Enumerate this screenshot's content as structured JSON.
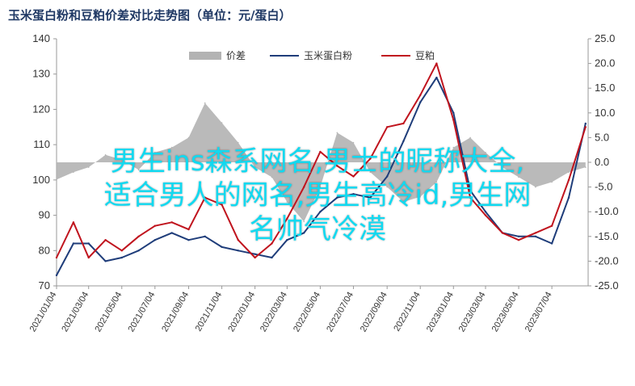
{
  "title": "玉米蛋白粉和豆粕价差对比走势图（单位：元/蛋白）",
  "overlay": {
    "line1": "男生ins森系网名,男士的昵称大全,",
    "line2": "适合男人的网名,男生高冷id,男生网",
    "line3": "名帅气冷漠"
  },
  "colors": {
    "spread_fill": "#b3b3b3",
    "corn": "#1f3d7a",
    "soy": "#c0141e"
  },
  "chart_data": {
    "type": "line",
    "title": "玉米蛋白粉和豆粕价差对比走势图（单位：元/蛋白）",
    "xlabel": "",
    "ylabel": "",
    "y_left": {
      "min": 70,
      "max": 140,
      "ticks": [
        70,
        80,
        90,
        100,
        110,
        120,
        130,
        140
      ]
    },
    "y_right": {
      "min": -25,
      "max": 25,
      "ticks": [
        -25,
        -20,
        -15,
        -10,
        -5,
        0,
        5,
        10,
        15,
        20,
        25
      ],
      "tick_labels": [
        "-25.0",
        "-20.0",
        "-15.0",
        "-10.0",
        "-5.0",
        "0.0",
        "5.0",
        "10.0",
        "15.0",
        "20.0",
        "25.0"
      ]
    },
    "x_tick_labels": [
      "2021/01/04",
      "2021/03/04",
      "2021/05/04",
      "2021/07/04",
      "2021/09/04",
      "2021/11/04",
      "2022/01/04",
      "2022/03/04",
      "2022/05/04",
      "2022/07/04",
      "2022/09/04",
      "2022/11/04",
      "2023/01/04",
      "2023/03/04",
      "2023/05/04",
      "2023/07/04"
    ],
    "legend": {
      "position": "top",
      "entries": [
        "价差",
        "玉米蛋白粉",
        "豆粕"
      ]
    },
    "grid": false,
    "series": [
      {
        "name": "价差",
        "kind": "area",
        "axis": "right",
        "x": [
          "2021/01/04",
          "2021/02/04",
          "2021/03/04",
          "2021/04/04",
          "2021/05/04",
          "2021/06/04",
          "2021/07/04",
          "2021/08/04",
          "2021/09/04",
          "2021/10/04",
          "2021/11/04",
          "2021/12/04",
          "2022/01/04",
          "2022/02/04",
          "2022/03/04",
          "2022/04/04",
          "2022/05/04",
          "2022/06/04",
          "2022/07/04",
          "2022/08/04",
          "2022/09/04",
          "2022/10/04",
          "2022/11/04",
          "2022/12/04",
          "2023/01/04",
          "2023/02/04",
          "2023/03/04",
          "2023/04/04",
          "2023/05/04",
          "2023/06/04",
          "2023/07/04",
          "2023/08/04",
          "2023/09/04"
        ],
        "values": [
          -3.5,
          -2.0,
          -1.0,
          1.5,
          0.5,
          -1.5,
          2.0,
          3.0,
          5.0,
          12.0,
          8.0,
          4.0,
          -1.0,
          -3.0,
          -8.0,
          -12.0,
          -5.0,
          6.0,
          4.0,
          -2.0,
          -5.0,
          -8.0,
          -7.0,
          -4.0,
          3.0,
          5.0,
          2.0,
          -1.0,
          -3.0,
          -5.0,
          -4.0,
          -2.0,
          -1.0
        ]
      },
      {
        "name": "玉米蛋白粉",
        "kind": "line",
        "axis": "left",
        "x": [
          "2021/01/04",
          "2021/02/04",
          "2021/03/04",
          "2021/04/04",
          "2021/05/04",
          "2021/06/04",
          "2021/07/04",
          "2021/08/04",
          "2021/09/04",
          "2021/10/04",
          "2021/11/04",
          "2021/12/04",
          "2022/01/04",
          "2022/02/04",
          "2022/03/04",
          "2022/04/04",
          "2022/05/04",
          "2022/06/04",
          "2022/07/04",
          "2022/08/04",
          "2022/09/04",
          "2022/10/04",
          "2022/11/04",
          "2022/12/04",
          "2023/01/04",
          "2023/02/04",
          "2023/03/04",
          "2023/04/04",
          "2023/05/04",
          "2023/06/04",
          "2023/07/04",
          "2023/08/04",
          "2023/09/04"
        ],
        "values": [
          73,
          82,
          82,
          77,
          78,
          80,
          83,
          85,
          83,
          84,
          81,
          80,
          79,
          78,
          83,
          85,
          91,
          95,
          96,
          95,
          101,
          111,
          122,
          129,
          119,
          97,
          91,
          85,
          84,
          84,
          82,
          95,
          116
        ]
      },
      {
        "name": "豆粕",
        "kind": "line",
        "axis": "left",
        "x": [
          "2021/01/04",
          "2021/02/04",
          "2021/03/04",
          "2021/04/04",
          "2021/05/04",
          "2021/06/04",
          "2021/07/04",
          "2021/08/04",
          "2021/09/04",
          "2021/10/04",
          "2021/11/04",
          "2021/12/04",
          "2022/01/04",
          "2022/02/04",
          "2022/03/04",
          "2022/04/04",
          "2022/05/04",
          "2022/06/04",
          "2022/07/04",
          "2022/08/04",
          "2022/09/04",
          "2022/10/04",
          "2022/11/04",
          "2022/12/04",
          "2023/01/04",
          "2023/02/04",
          "2023/03/04",
          "2023/04/04",
          "2023/05/04",
          "2023/06/04",
          "2023/07/04",
          "2023/08/04",
          "2023/09/04"
        ],
        "values": [
          78,
          88,
          78,
          83,
          80,
          84,
          87,
          88,
          86,
          95,
          93,
          83,
          78,
          82,
          89,
          98,
          108,
          104,
          101,
          106,
          115,
          116,
          124,
          133,
          117,
          95,
          90,
          85,
          83,
          85,
          87,
          100,
          115
        ]
      }
    ]
  }
}
